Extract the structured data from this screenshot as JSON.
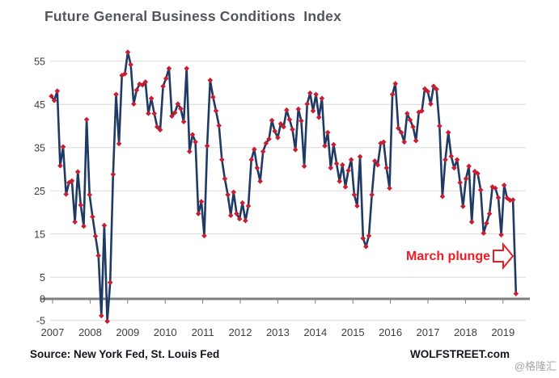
{
  "title": "Future General Business Conditions  Index",
  "footer": {
    "source_note": "Source: New York Fed, St. Louis Fed",
    "brand": "WOLFSTREET.com",
    "watermark": "@格隆汇"
  },
  "colors": {
    "title": "#53555e",
    "line": "#1f3a64",
    "marker": "#c81e32",
    "annotation": "#ec1c24",
    "grid": "#d9d9d9",
    "zero_line": "#7f7f7f",
    "axis_text": "#3f3f3f",
    "footer_text": "#15151f",
    "watermark": "#a6a6a6"
  },
  "chart_data": {
    "type": "line",
    "title": "Future General Business Conditions Index",
    "xlabel": "",
    "ylabel": "",
    "x_monthly_start": "2007-01",
    "x_monthly_end": "2020-03",
    "year_labels": [
      "2007",
      "2008",
      "2009",
      "2010",
      "2011",
      "2012",
      "2013",
      "2014",
      "2015",
      "2016",
      "2017",
      "2018",
      "2019"
    ],
    "y_ticks": [
      -5,
      0,
      5,
      15,
      25,
      35,
      45,
      55
    ],
    "ylim": [
      -8,
      60
    ],
    "grid": "horizontal",
    "legend": "none",
    "marker_shape": "diamond",
    "annotations": [
      {
        "text": "March plunge",
        "points_at": "2020-03",
        "style": "red-bold-text-with-right-block-arrow"
      }
    ],
    "series": [
      {
        "name": "Future General Business Conditions Index",
        "monthly_values": [
          46.9,
          45.9,
          48.1,
          30.8,
          35.2,
          24.2,
          26.9,
          27.3,
          17.8,
          29.4,
          21.7,
          16.8,
          41.5,
          24.1,
          19.0,
          14.5,
          10.0,
          -3.9,
          17.0,
          -5.2,
          3.8,
          28.8,
          47.3,
          35.9,
          51.7,
          52.1,
          57.1,
          54.2,
          45.1,
          48.3,
          49.7,
          49.5,
          50.2,
          42.9,
          46.4,
          42.9,
          39.8,
          39.1,
          49.2,
          51.0,
          53.3,
          42.3,
          43.1,
          45.1,
          44.0,
          41.0,
          53.3,
          34.1,
          38.0,
          36.3,
          19.7,
          22.5,
          14.6,
          35.4,
          50.6,
          46.7,
          43.5,
          40.1,
          32.2,
          27.8,
          24.1,
          19.3,
          24.7,
          19.7,
          18.5,
          22.2,
          18.1,
          21.5,
          32.2,
          34.6,
          30.3,
          27.2,
          34.1,
          36.0,
          37.0,
          41.3,
          38.8,
          37.3,
          40.5,
          39.8,
          43.7,
          41.5,
          39.2,
          34.5,
          43.9,
          41.2,
          30.7,
          45.1,
          47.6,
          43.5,
          47.3,
          42.0,
          46.4,
          35.4,
          38.5,
          30.3,
          35.7,
          31.3,
          27.2,
          31.0,
          25.9,
          29.7,
          32.2,
          24.1,
          21.5,
          32.9,
          14.0,
          12.1,
          14.6,
          24.1,
          31.9,
          31.0,
          36.0,
          36.3,
          30.3,
          25.6,
          47.3,
          49.8,
          39.5,
          38.5,
          36.3,
          42.9,
          41.4,
          39.8,
          36.6,
          43.2,
          43.5,
          48.6,
          48.0,
          45.1,
          49.2,
          48.5,
          40.0,
          23.7,
          32.2,
          38.5,
          33.0,
          30.3,
          32.2,
          26.9,
          21.4,
          27.8,
          30.7,
          17.8,
          29.5,
          29.0,
          25.2,
          15.2,
          17.5,
          19.7,
          25.9,
          25.6,
          23.4,
          14.8,
          26.3,
          23.3,
          22.8,
          22.9,
          1.2
        ]
      }
    ]
  }
}
